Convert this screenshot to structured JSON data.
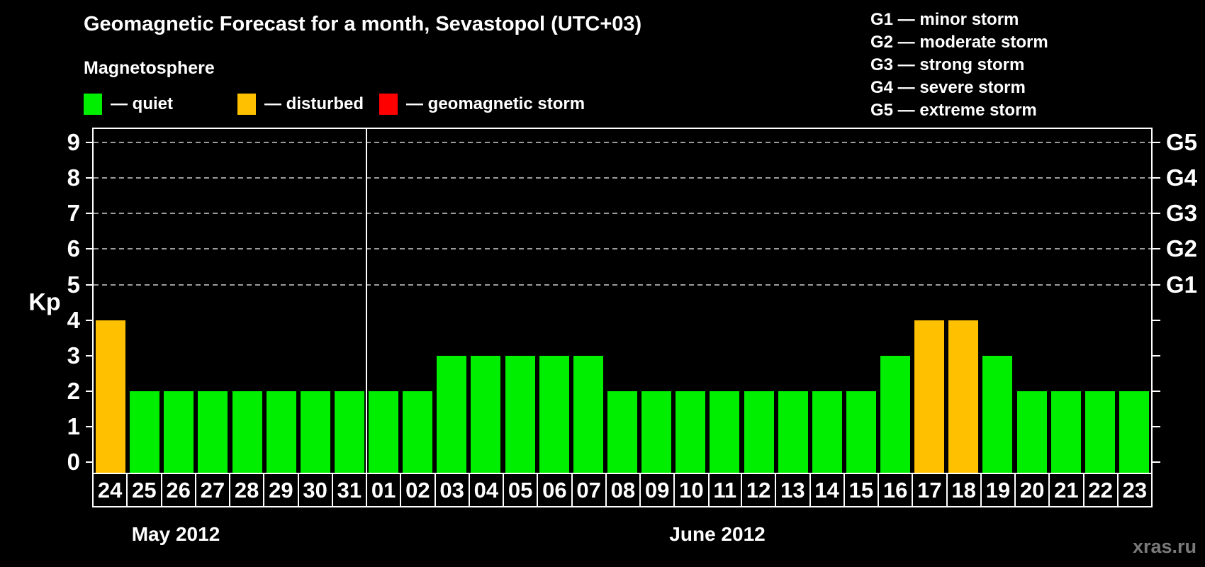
{
  "title": "Geomagnetic Forecast for a month, Sevastopol (UTC+03)",
  "legend": {
    "heading": "Magnetosphere",
    "items": [
      {
        "key": "quiet",
        "label": "— quiet",
        "color": "#00EE00"
      },
      {
        "key": "disturbed",
        "label": "— disturbed",
        "color": "#FFC000"
      },
      {
        "key": "storm",
        "label": "— geomagnetic storm",
        "color": "#FF0000"
      }
    ]
  },
  "storm_scale": [
    "G1 — minor storm",
    "G2 — moderate storm",
    "G3 — strong storm",
    "G4 — severe storm",
    "G5 — extreme storm"
  ],
  "watermark": "xras.ru",
  "chart_data": {
    "type": "bar",
    "ylabel": "Kp",
    "ylim": [
      0,
      9
    ],
    "yticks": [
      0,
      1,
      2,
      3,
      4,
      5,
      6,
      7,
      8,
      9
    ],
    "gridlines_at": [
      5,
      6,
      7,
      8,
      9
    ],
    "legend_position": "top",
    "grid": "dashed horizontal at storm levels only",
    "right_axis_labels": [
      {
        "kp": 5,
        "label": "G1"
      },
      {
        "kp": 6,
        "label": "G2"
      },
      {
        "kp": 7,
        "label": "G3"
      },
      {
        "kp": 8,
        "label": "G4"
      },
      {
        "kp": 9,
        "label": "G5"
      }
    ],
    "months": [
      {
        "label": "May 2012",
        "days": 8
      },
      {
        "label": "June 2012",
        "days": 23
      }
    ],
    "colors": {
      "quiet": "#00EE00",
      "disturbed": "#FFC000",
      "storm": "#FF0000"
    },
    "bars": [
      {
        "day": "24",
        "kp": 4,
        "condition": "disturbed"
      },
      {
        "day": "25",
        "kp": 2,
        "condition": "quiet"
      },
      {
        "day": "26",
        "kp": 2,
        "condition": "quiet"
      },
      {
        "day": "27",
        "kp": 2,
        "condition": "quiet"
      },
      {
        "day": "28",
        "kp": 2,
        "condition": "quiet"
      },
      {
        "day": "29",
        "kp": 2,
        "condition": "quiet"
      },
      {
        "day": "30",
        "kp": 2,
        "condition": "quiet"
      },
      {
        "day": "31",
        "kp": 2,
        "condition": "quiet"
      },
      {
        "day": "01",
        "kp": 2,
        "condition": "quiet"
      },
      {
        "day": "02",
        "kp": 2,
        "condition": "quiet"
      },
      {
        "day": "03",
        "kp": 3,
        "condition": "quiet"
      },
      {
        "day": "04",
        "kp": 3,
        "condition": "quiet"
      },
      {
        "day": "05",
        "kp": 3,
        "condition": "quiet"
      },
      {
        "day": "06",
        "kp": 3,
        "condition": "quiet"
      },
      {
        "day": "07",
        "kp": 3,
        "condition": "quiet"
      },
      {
        "day": "08",
        "kp": 2,
        "condition": "quiet"
      },
      {
        "day": "09",
        "kp": 2,
        "condition": "quiet"
      },
      {
        "day": "10",
        "kp": 2,
        "condition": "quiet"
      },
      {
        "day": "11",
        "kp": 2,
        "condition": "quiet"
      },
      {
        "day": "12",
        "kp": 2,
        "condition": "quiet"
      },
      {
        "day": "13",
        "kp": 2,
        "condition": "quiet"
      },
      {
        "day": "14",
        "kp": 2,
        "condition": "quiet"
      },
      {
        "day": "15",
        "kp": 2,
        "condition": "quiet"
      },
      {
        "day": "16",
        "kp": 3,
        "condition": "quiet"
      },
      {
        "day": "17",
        "kp": 4,
        "condition": "disturbed"
      },
      {
        "day": "18",
        "kp": 4,
        "condition": "disturbed"
      },
      {
        "day": "19",
        "kp": 3,
        "condition": "quiet"
      },
      {
        "day": "20",
        "kp": 2,
        "condition": "quiet"
      },
      {
        "day": "21",
        "kp": 2,
        "condition": "quiet"
      },
      {
        "day": "22",
        "kp": 2,
        "condition": "quiet"
      },
      {
        "day": "23",
        "kp": 2,
        "condition": "quiet"
      }
    ]
  }
}
